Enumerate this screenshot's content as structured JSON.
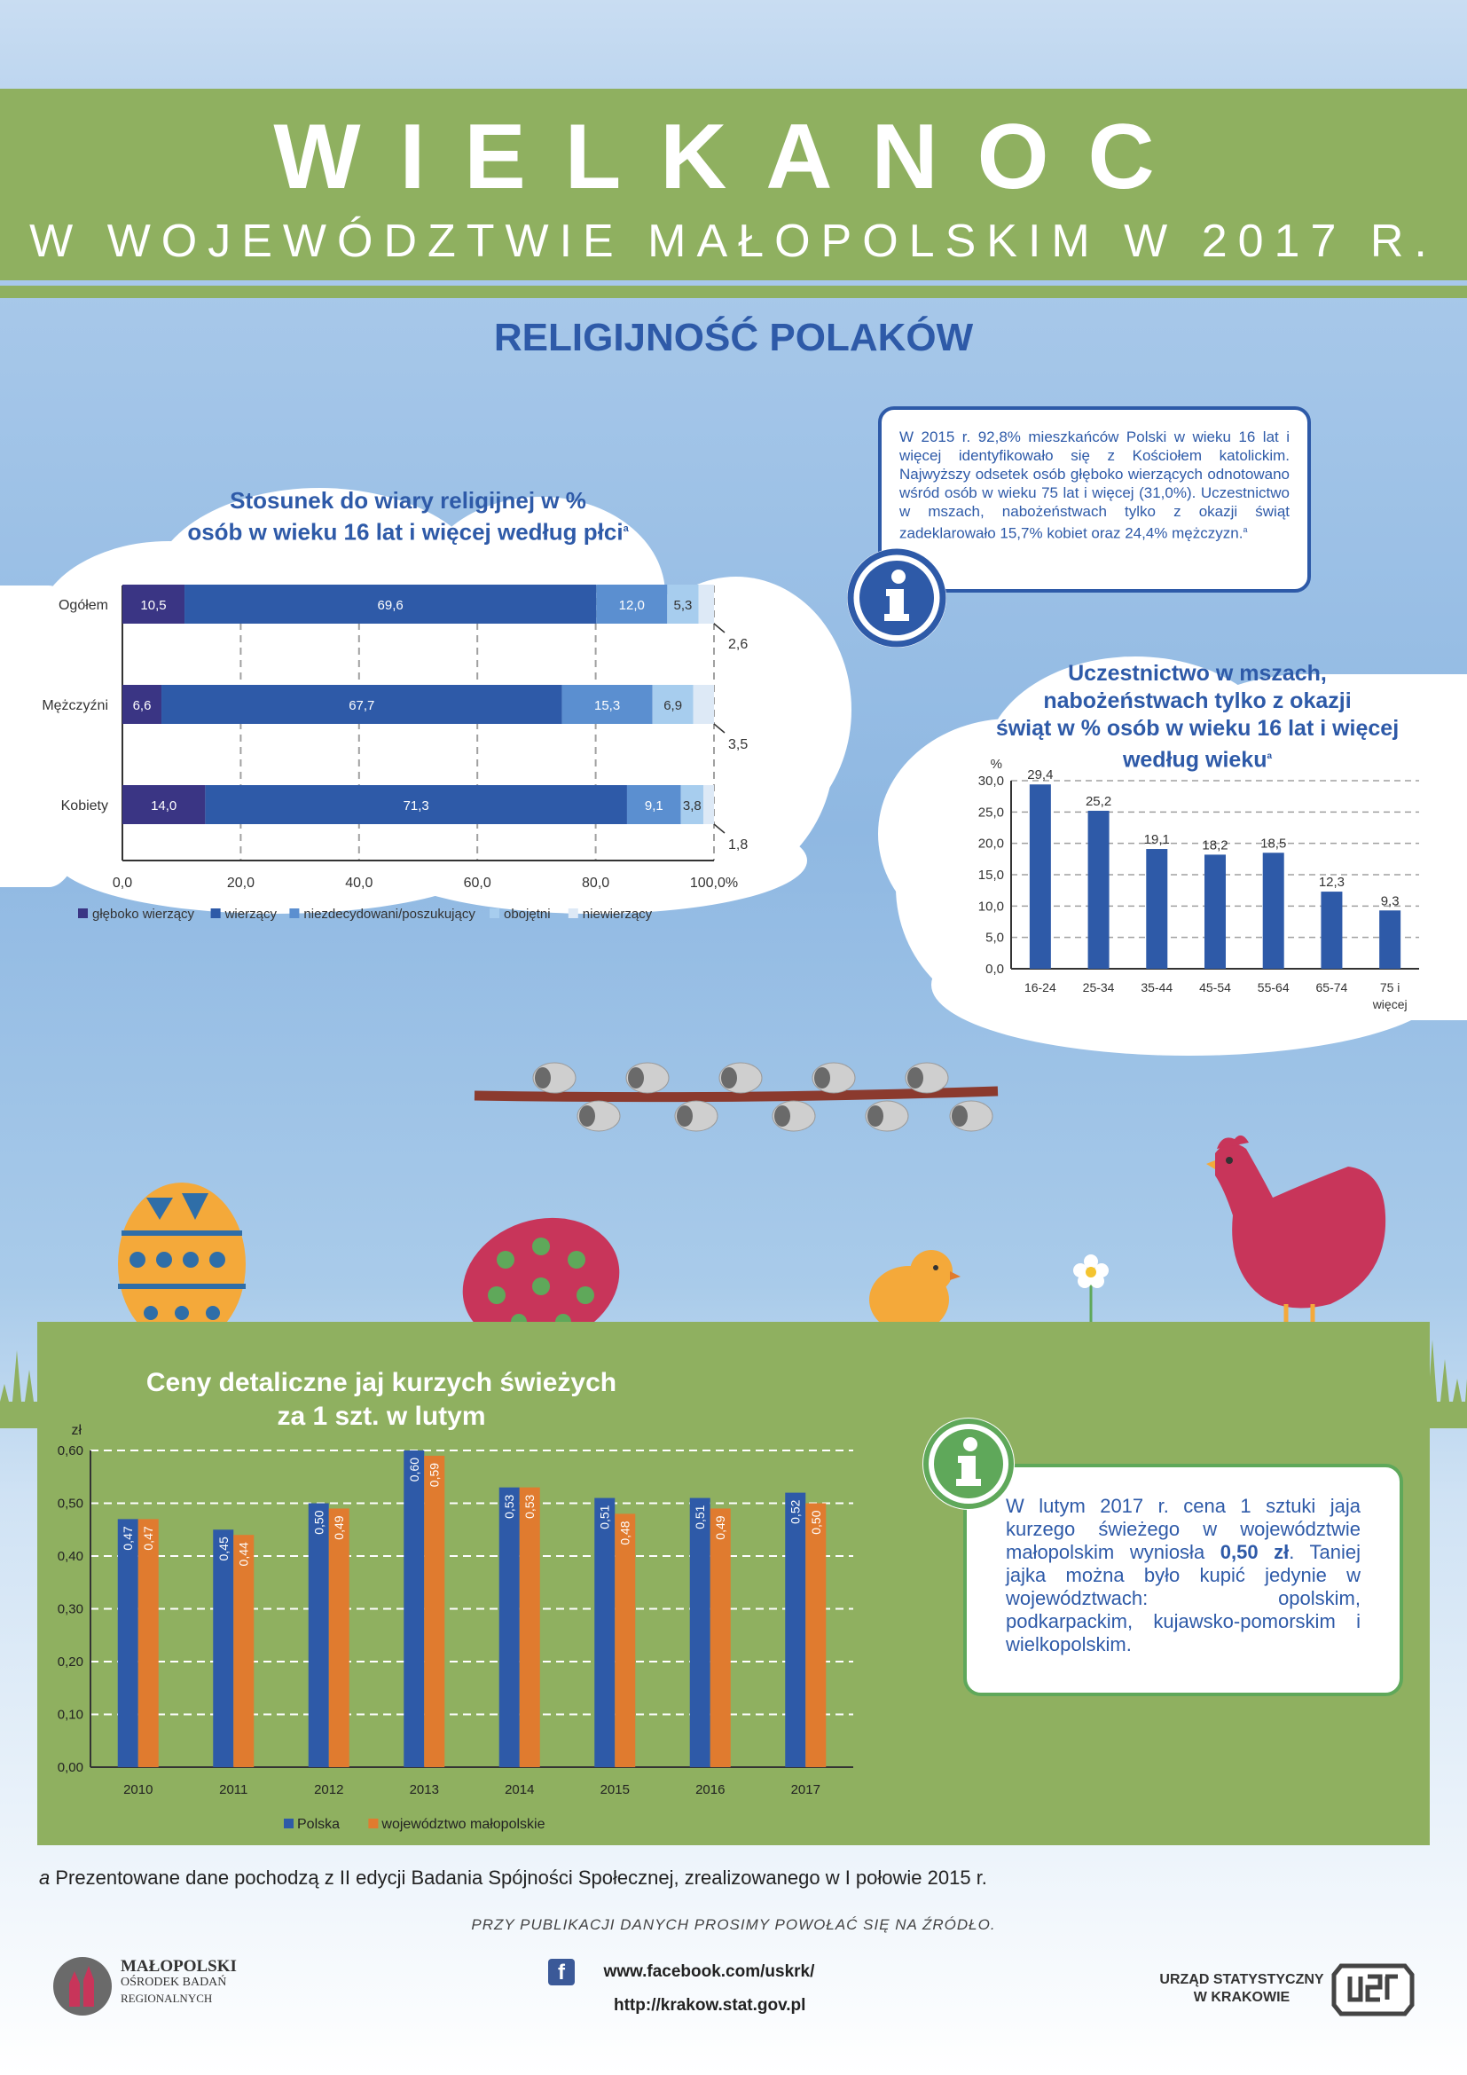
{
  "header": {
    "title": "WIELKANOC",
    "subtitle": "W WOJEWÓDZTWIE MAŁOPOLSKIM W 2017 R.",
    "section": "RELIGIJNOŚĆ POLAKÓW"
  },
  "info1": {
    "text": "W 2015 r. 92,8% mieszkańców Polski w wieku 16 lat i więcej identyfikowało się z Kościołem katolickim. Najwyższy odsetek osób głęboko wierzących odnotowano wśród osób w wieku 75 lat i więcej (31,0%). Uczestnictwo w mszach, nabożeństwach tylko z okazji świąt zadeklarowało 15,7% kobiet oraz 24,4% mężczyzn.",
    "sup": "a"
  },
  "info2": {
    "text_a": "W lutym 2017 r. cena 1 sztuki jaja kurzego świeżego w województwie małopolskim wyniosła ",
    "text_bold": "0,50 zł",
    "text_b": ". Taniej jajka można było kupić jedynie w województwach: opolskim, podkarpackim, kujawsko-pomorskim i wielkopolskim."
  },
  "footer": {
    "note_a": "a",
    "note": " Prezentowane dane pochodzą z II edycji Badania Spójności Społecznej, zrealizowanego w I połowie 2015 r.",
    "source": "PRZY PUBLIKACJI DANYCH PROSIMY POWOŁAĆ SIĘ NA ŹRÓDŁO.",
    "facebook": "www.facebook.com/uskrk/",
    "website": "http://krakow.stat.gov.pl",
    "logo_left": [
      "MAŁOPOLSKI",
      "OŚRODEK BADAŃ",
      "REGIONALNYCH"
    ],
    "logo_right": [
      "URZĄD STATYSTYCZNY",
      "W KRAKOWIE"
    ]
  },
  "colors": {
    "blue_dark": "#2e5aa8",
    "green": "#8fb060",
    "orange": "#e07b2f",
    "navy": "#3a3584"
  },
  "chart_data": [
    {
      "type": "bar",
      "orientation": "horizontal",
      "stacked": true,
      "title": "Stosunek do wiary religijnej w % osób w wieku 16 lat i więcej według płci",
      "title_lines": [
        "Stosunek do wiary religijnej w %",
        "osób w wieku 16 lat i więcej według płci"
      ],
      "title_sup": "a",
      "categories": [
        "Ogółem",
        "Mężczyźni",
        "Kobiety"
      ],
      "series": [
        {
          "name": "głęboko wierzący",
          "color": "#3a3584",
          "values": [
            10.5,
            6.6,
            14.0
          ],
          "labels": [
            "10,5",
            "6,6",
            "14,0"
          ]
        },
        {
          "name": "wierzący",
          "color": "#2e5aa8",
          "values": [
            69.6,
            67.7,
            71.3
          ],
          "labels": [
            "69,6",
            "67,7",
            "71,3"
          ]
        },
        {
          "name": "niezdecydowani/poszukujący",
          "color": "#5b8fd0",
          "values": [
            12.0,
            15.3,
            9.1
          ],
          "labels": [
            "12,0",
            "15,3",
            "9,1"
          ]
        },
        {
          "name": "obojętni",
          "color": "#a7cdee",
          "values": [
            5.3,
            6.9,
            3.8
          ],
          "labels": [
            "5,3",
            "6,9",
            "3,8"
          ]
        },
        {
          "name": "niewierzący",
          "color": "#dde9f6",
          "values": [
            2.6,
            3.5,
            1.8
          ],
          "labels": [
            "2,6",
            "3,5",
            "1,8"
          ]
        }
      ],
      "xlim": [
        0,
        100
      ],
      "xticks": [
        "0,0",
        "20,0",
        "40,0",
        "60,0",
        "80,0",
        "100,0%"
      ],
      "grid": true,
      "legend": "bottom"
    },
    {
      "type": "bar",
      "title": "Uczestnictwo w mszach, nabożeństwach tylko z okazji świąt w % osób w wieku 16 lat i więcej według wieku",
      "title_lines": [
        "Uczestnictwo w mszach,",
        "nabożeństwach tylko z okazji",
        "świąt w % osób w wieku 16 lat i więcej",
        "według wieku"
      ],
      "title_sup": "a",
      "ylabel": "%",
      "categories": [
        "16-24",
        "25-34",
        "35-44",
        "45-54",
        "55-64",
        "65-74",
        "75 i więcej"
      ],
      "category_lines": [
        [
          "16-24"
        ],
        [
          "25-34"
        ],
        [
          "35-44"
        ],
        [
          "45-54"
        ],
        [
          "55-64"
        ],
        [
          "65-74"
        ],
        [
          "75 i",
          "więcej"
        ]
      ],
      "values": [
        29.4,
        25.2,
        19.1,
        18.2,
        18.5,
        12.3,
        9.3
      ],
      "labels": [
        "29,4",
        "25,2",
        "19,1",
        "18,2",
        "18,5",
        "12,3",
        "9,3"
      ],
      "ylim": [
        0,
        30
      ],
      "yticks": [
        "0,0",
        "5,0",
        "10,0",
        "15,0",
        "20,0",
        "25,0",
        "30,0"
      ],
      "color": "#2e5aa8",
      "grid": true
    },
    {
      "type": "bar",
      "title": "Ceny detaliczne jaj kurzych świeżych za 1 szt. w lutym",
      "title_lines": [
        "Ceny detaliczne jaj kurzych świeżych",
        "za 1 szt. w lutym"
      ],
      "ylabel": "zł",
      "categories": [
        "2010",
        "2011",
        "2012",
        "2013",
        "2014",
        "2015",
        "2016",
        "2017"
      ],
      "series": [
        {
          "name": "Polska",
          "color": "#2e5aa8",
          "values": [
            0.47,
            0.45,
            0.5,
            0.6,
            0.53,
            0.51,
            0.51,
            0.52
          ],
          "labels": [
            "0,47",
            "0,45",
            "0,50",
            "0,60",
            "0,53",
            "0,51",
            "0,51",
            "0,52"
          ]
        },
        {
          "name": "województwo małopolskie",
          "color": "#e07b2f",
          "values": [
            0.47,
            0.44,
            0.49,
            0.59,
            0.53,
            0.48,
            0.49,
            0.5
          ],
          "labels": [
            "0,47",
            "0,44",
            "0,49",
            "0,59",
            "0,53",
            "0,48",
            "0,49",
            "0,50"
          ]
        }
      ],
      "ylim": [
        0,
        0.6
      ],
      "yticks": [
        "0,00",
        "0,10",
        "0,20",
        "0,30",
        "0,40",
        "0,50",
        "0,60"
      ],
      "grid": true,
      "legend": "bottom"
    }
  ]
}
